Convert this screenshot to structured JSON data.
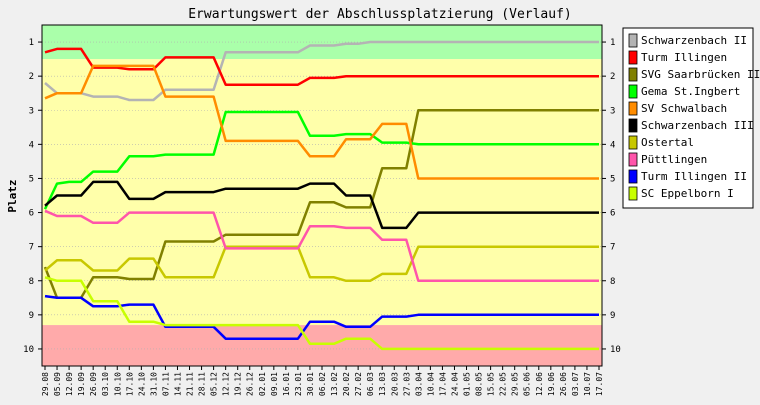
{
  "chart_data": {
    "type": "line",
    "title": "Erwartungswert der Abschlussplatzierung (Verlauf)",
    "ylabel": "Platz",
    "ylim": [
      0.5,
      10.5
    ],
    "yticks": [
      "1",
      "2",
      "3",
      "4",
      "5",
      "6",
      "7",
      "8",
      "9",
      "10"
    ],
    "y_inverted": true,
    "bands": [
      {
        "from": 0.5,
        "to": 1.5,
        "color": "#aaffaa"
      },
      {
        "from": 1.5,
        "to": 9.3,
        "color": "#ffffaa"
      },
      {
        "from": 9.3,
        "to": 10.5,
        "color": "#ffaaaa"
      }
    ],
    "legend_position": "right",
    "categories": [
      "29.08",
      "05.09",
      "12.09",
      "19.09",
      "26.09",
      "03.10",
      "10.10",
      "17.10",
      "24.10",
      "31.10",
      "07.11",
      "14.11",
      "21.11",
      "28.11",
      "05.12",
      "12.12",
      "19.12",
      "26.12",
      "02.01",
      "09.01",
      "16.01",
      "23.01",
      "30.01",
      "06.02",
      "13.02",
      "20.02",
      "27.02",
      "06.03",
      "13.03",
      "20.03",
      "27.03",
      "03.04",
      "10.04",
      "17.04",
      "24.04",
      "01.05",
      "08.05",
      "15.05",
      "22.05",
      "29.05",
      "05.06",
      "12.06",
      "19.06",
      "26.06",
      "03.07",
      "10.07",
      "17.07"
    ],
    "series": [
      {
        "name": "Schwarzenbach II",
        "color": "#b4b4b4",
        "values": [
          2.2,
          2.5,
          2.5,
          2.5,
          2.6,
          2.6,
          2.6,
          2.7,
          2.7,
          2.7,
          2.4,
          2.4,
          2.4,
          2.4,
          2.4,
          1.3,
          1.3,
          1.3,
          1.3,
          1.3,
          1.3,
          1.3,
          1.1,
          1.1,
          1.1,
          1.05,
          1.05,
          1.0,
          1.0,
          1.0,
          1.0,
          1.0,
          1.0,
          1.0,
          1.0,
          1.0,
          1.0,
          1.0,
          1.0,
          1.0,
          1.0,
          1.0,
          1.0,
          1.0,
          1.0,
          1.0,
          1.0
        ]
      },
      {
        "name": "Turm Illingen",
        "color": "#ff0000",
        "values": [
          1.3,
          1.2,
          1.2,
          1.2,
          1.75,
          1.75,
          1.75,
          1.8,
          1.8,
          1.8,
          1.45,
          1.45,
          1.45,
          1.45,
          1.45,
          2.25,
          2.25,
          2.25,
          2.25,
          2.25,
          2.25,
          2.25,
          2.05,
          2.05,
          2.05,
          2.0,
          2.0,
          2.0,
          2.0,
          2.0,
          2.0,
          2.0,
          2.0,
          2.0,
          2.0,
          2.0,
          2.0,
          2.0,
          2.0,
          2.0,
          2.0,
          2.0,
          2.0,
          2.0,
          2.0,
          2.0,
          2.0
        ]
      },
      {
        "name": "SVG Saarbrücken II",
        "color": "#808000",
        "values": [
          7.6,
          8.5,
          8.5,
          8.5,
          7.9,
          7.9,
          7.9,
          7.95,
          7.95,
          7.95,
          6.85,
          6.85,
          6.85,
          6.85,
          6.85,
          6.65,
          6.65,
          6.65,
          6.65,
          6.65,
          6.65,
          6.65,
          5.7,
          5.7,
          5.7,
          5.85,
          5.85,
          5.85,
          4.7,
          4.7,
          4.7,
          3.0,
          3.0,
          3.0,
          3.0,
          3.0,
          3.0,
          3.0,
          3.0,
          3.0,
          3.0,
          3.0,
          3.0,
          3.0,
          3.0,
          3.0,
          3.0
        ]
      },
      {
        "name": "Gema St.Ingbert",
        "color": "#00ff00",
        "values": [
          5.9,
          5.15,
          5.1,
          5.1,
          4.8,
          4.8,
          4.8,
          4.35,
          4.35,
          4.35,
          4.3,
          4.3,
          4.3,
          4.3,
          4.3,
          3.05,
          3.05,
          3.05,
          3.05,
          3.05,
          3.05,
          3.05,
          3.75,
          3.75,
          3.75,
          3.7,
          3.7,
          3.7,
          3.95,
          3.95,
          3.95,
          4.0,
          4.0,
          4.0,
          4.0,
          4.0,
          4.0,
          4.0,
          4.0,
          4.0,
          4.0,
          4.0,
          4.0,
          4.0,
          4.0,
          4.0,
          4.0
        ]
      },
      {
        "name": "SV Schwalbach",
        "color": "#ff8c00",
        "values": [
          2.65,
          2.5,
          2.5,
          2.5,
          1.7,
          1.7,
          1.7,
          1.7,
          1.7,
          1.7,
          2.6,
          2.6,
          2.6,
          2.6,
          2.6,
          3.9,
          3.9,
          3.9,
          3.9,
          3.9,
          3.9,
          3.9,
          4.35,
          4.35,
          4.35,
          3.85,
          3.85,
          3.85,
          3.4,
          3.4,
          3.4,
          5.0,
          5.0,
          5.0,
          5.0,
          5.0,
          5.0,
          5.0,
          5.0,
          5.0,
          5.0,
          5.0,
          5.0,
          5.0,
          5.0,
          5.0,
          5.0
        ]
      },
      {
        "name": "Schwarzenbach III",
        "color": "#000000",
        "values": [
          5.8,
          5.5,
          5.5,
          5.5,
          5.1,
          5.1,
          5.1,
          5.6,
          5.6,
          5.6,
          5.4,
          5.4,
          5.4,
          5.4,
          5.4,
          5.3,
          5.3,
          5.3,
          5.3,
          5.3,
          5.3,
          5.3,
          5.15,
          5.15,
          5.15,
          5.5,
          5.5,
          5.5,
          6.45,
          6.45,
          6.45,
          6.0,
          6.0,
          6.0,
          6.0,
          6.0,
          6.0,
          6.0,
          6.0,
          6.0,
          6.0,
          6.0,
          6.0,
          6.0,
          6.0,
          6.0,
          6.0
        ]
      },
      {
        "name": "Ostertal",
        "color": "#c8c800",
        "values": [
          7.7,
          7.4,
          7.4,
          7.4,
          7.7,
          7.7,
          7.7,
          7.35,
          7.35,
          7.35,
          7.9,
          7.9,
          7.9,
          7.9,
          7.9,
          7.0,
          7.0,
          7.0,
          7.0,
          7.0,
          7.0,
          7.0,
          7.9,
          7.9,
          7.9,
          8.0,
          8.0,
          8.0,
          7.8,
          7.8,
          7.8,
          7.0,
          7.0,
          7.0,
          7.0,
          7.0,
          7.0,
          7.0,
          7.0,
          7.0,
          7.0,
          7.0,
          7.0,
          7.0,
          7.0,
          7.0,
          7.0
        ]
      },
      {
        "name": "Püttlingen",
        "color": "#ff55aa",
        "values": [
          5.95,
          6.1,
          6.1,
          6.1,
          6.3,
          6.3,
          6.3,
          6.0,
          6.0,
          6.0,
          6.0,
          6.0,
          6.0,
          6.0,
          6.0,
          7.05,
          7.05,
          7.05,
          7.05,
          7.05,
          7.05,
          7.05,
          6.4,
          6.4,
          6.4,
          6.45,
          6.45,
          6.45,
          6.8,
          6.8,
          6.8,
          8.0,
          8.0,
          8.0,
          8.0,
          8.0,
          8.0,
          8.0,
          8.0,
          8.0,
          8.0,
          8.0,
          8.0,
          8.0,
          8.0,
          8.0,
          8.0
        ]
      },
      {
        "name": "Turm Illingen II",
        "color": "#0000ff",
        "values": [
          8.45,
          8.5,
          8.5,
          8.5,
          8.75,
          8.75,
          8.75,
          8.7,
          8.7,
          8.7,
          9.35,
          9.35,
          9.35,
          9.35,
          9.35,
          9.7,
          9.7,
          9.7,
          9.7,
          9.7,
          9.7,
          9.7,
          9.2,
          9.2,
          9.2,
          9.35,
          9.35,
          9.35,
          9.05,
          9.05,
          9.05,
          9.0,
          9.0,
          9.0,
          9.0,
          9.0,
          9.0,
          9.0,
          9.0,
          9.0,
          9.0,
          9.0,
          9.0,
          9.0,
          9.0,
          9.0,
          9.0
        ]
      },
      {
        "name": "SC Eppelborn I",
        "color": "#c8ff00",
        "values": [
          7.9,
          8.0,
          8.0,
          8.0,
          8.6,
          8.6,
          8.6,
          9.2,
          9.2,
          9.2,
          9.3,
          9.3,
          9.3,
          9.3,
          9.3,
          9.3,
          9.3,
          9.3,
          9.3,
          9.3,
          9.3,
          9.3,
          9.85,
          9.85,
          9.85,
          9.7,
          9.7,
          9.7,
          10.0,
          10.0,
          10.0,
          10.0,
          10.0,
          10.0,
          10.0,
          10.0,
          10.0,
          10.0,
          10.0,
          10.0,
          10.0,
          10.0,
          10.0,
          10.0,
          10.0,
          10.0,
          10.0
        ]
      }
    ]
  }
}
